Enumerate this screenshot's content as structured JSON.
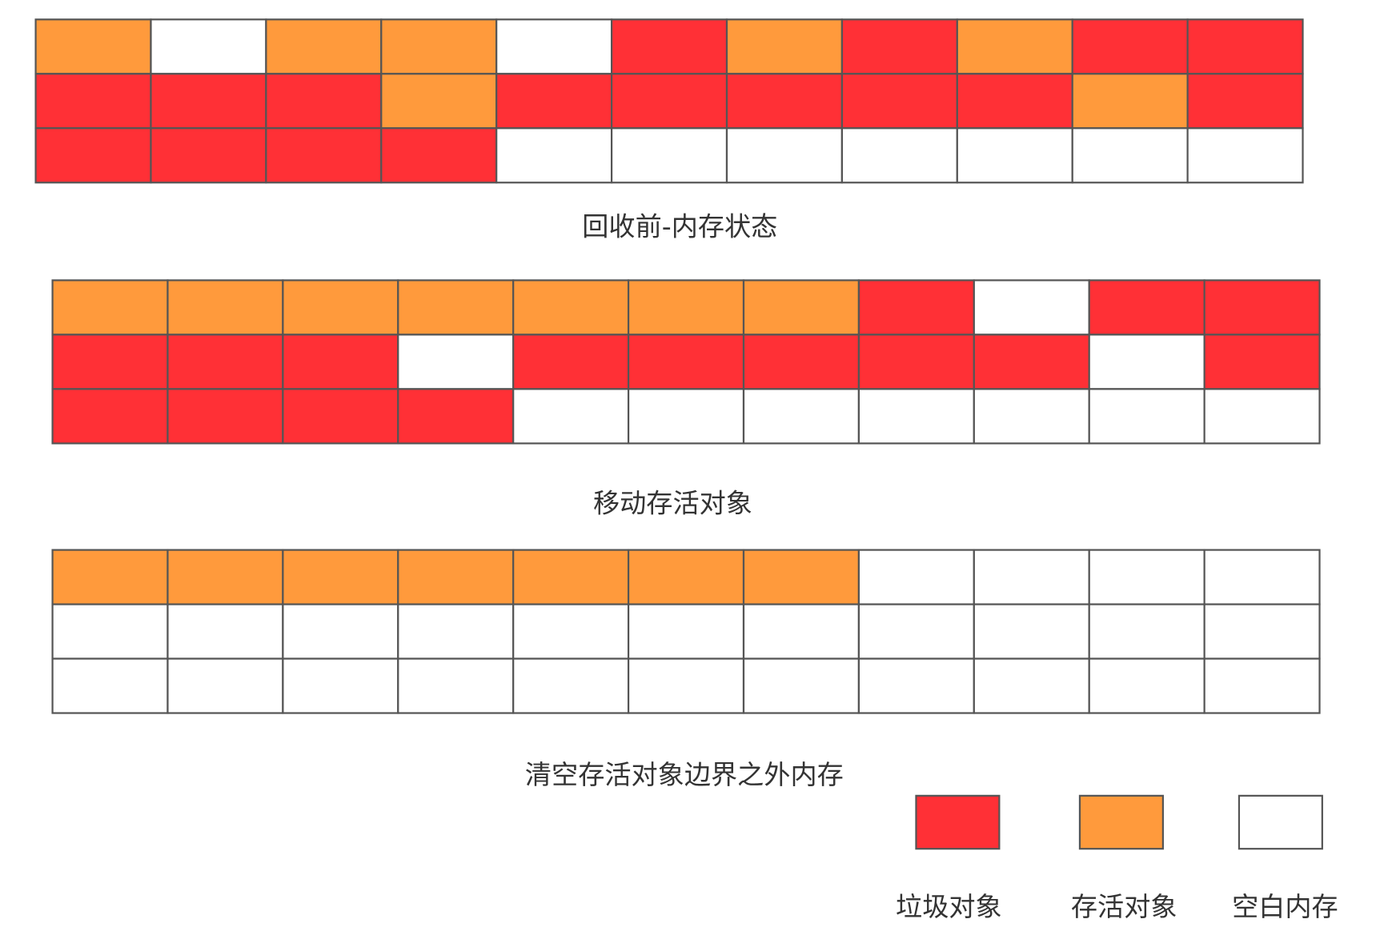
{
  "grids": [
    {
      "caption": "回收前-内存状态"
    },
    {
      "caption": "移动存活对象"
    },
    {
      "caption": "清空存活对象边界之外内存"
    }
  ],
  "legend": [
    {
      "label": "垃圾对象",
      "color": "#ff3036"
    },
    {
      "label": "存活对象",
      "color": "#ff9a3c"
    },
    {
      "label": "空白内存",
      "color": "#ffffff"
    }
  ]
}
